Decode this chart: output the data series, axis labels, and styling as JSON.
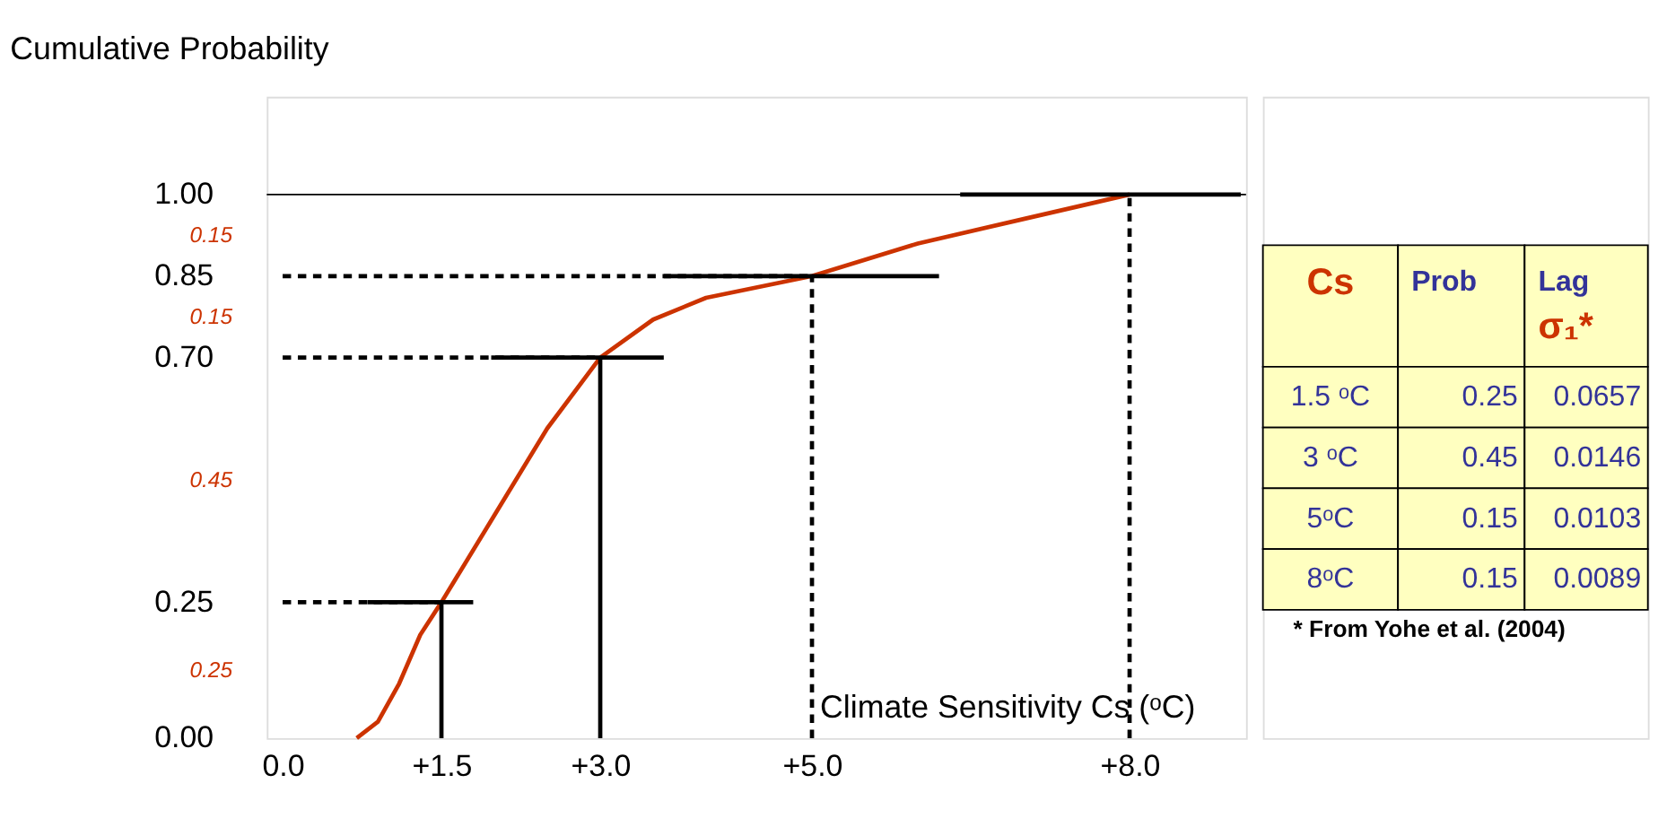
{
  "chart_data": [
    {
      "type": "line",
      "title": "Cumulative Probability",
      "xlabel": "Climate Sensitivity Cs (ᵒC)",
      "xlim": [
        -0.15,
        9.1
      ],
      "ylim": [
        0,
        1.18
      ],
      "xticks": [
        {
          "value": 0,
          "label": "0.0"
        },
        {
          "value": 1.5,
          "label": "+1.5"
        },
        {
          "value": 3,
          "label": "+3.0"
        },
        {
          "value": 5,
          "label": "+5.0"
        },
        {
          "value": 8,
          "label": "+8.0"
        }
      ],
      "yticks": [
        {
          "value": 0,
          "label": "0.00"
        },
        {
          "value": 0.25,
          "label": "0.25"
        },
        {
          "value": 0.7,
          "label": "0.70"
        },
        {
          "value": 0.85,
          "label": "0.85"
        },
        {
          "value": 1,
          "label": "1.00"
        }
      ],
      "grid": false,
      "ref_lines": [
        {
          "axis": "y",
          "value": 1,
          "color": "#000000",
          "line_style": "solid"
        }
      ],
      "annotations": [
        "0.15",
        "0.15",
        "0.45",
        "0.25"
      ],
      "series": [
        {
          "type": "line",
          "color": "#cc3300",
          "line_style": "solid",
          "x": [
            0.7,
            0.9,
            1.1,
            1.3,
            1.5,
            2.0,
            2.5,
            3.0,
            3.5,
            4.0,
            5.0,
            6.0,
            7.0,
            8.0
          ],
          "values": [
            0,
            0.03,
            0.1,
            0.19,
            0.25,
            0.41,
            0.57,
            0.7,
            0.77,
            0.81,
            0.85,
            0.91,
            0.955,
            1.0
          ]
        },
        {
          "type": "line",
          "color": "#000000",
          "line_style": "solid",
          "x": [
            0.8,
            1.8
          ],
          "values": [
            0.25,
            0.25
          ]
        },
        {
          "type": "line",
          "color": "#000000",
          "line_style": "solid",
          "x": [
            1.97,
            3.6
          ],
          "values": [
            0.7,
            0.7
          ]
        },
        {
          "type": "line",
          "color": "#000000",
          "line_style": "solid",
          "x": [
            3.6,
            6.2
          ],
          "values": [
            0.85,
            0.85
          ]
        },
        {
          "type": "line",
          "color": "#000000",
          "line_style": "solid",
          "x": [
            6.4,
            9.05
          ],
          "values": [
            1.0,
            1.0
          ]
        },
        {
          "type": "line",
          "color": "#000000",
          "line_style": "dashed",
          "x": [
            0,
            1.5
          ],
          "values": [
            0.25,
            0.25
          ]
        },
        {
          "type": "line",
          "color": "#000000",
          "line_style": "dashed",
          "x": [
            0,
            3.0
          ],
          "values": [
            0.7,
            0.7
          ]
        },
        {
          "type": "line",
          "color": "#000000",
          "line_style": "dashed",
          "x": [
            0,
            5.0
          ],
          "values": [
            0.85,
            0.85
          ]
        },
        {
          "type": "line",
          "color": "#000000",
          "line_style": "solid",
          "x": [
            1.5,
            1.5
          ],
          "values": [
            0,
            0.25
          ]
        },
        {
          "type": "line",
          "color": "#000000",
          "line_style": "solid",
          "x": [
            3.0,
            3.0
          ],
          "values": [
            0,
            0.7
          ]
        },
        {
          "type": "line",
          "color": "#000000",
          "line_style": "dashed",
          "x": [
            5.0,
            5.0
          ],
          "values": [
            0,
            0.85
          ]
        },
        {
          "type": "line",
          "color": "#000000",
          "line_style": "dashed",
          "x": [
            8.0,
            8.0
          ],
          "values": [
            0,
            1.0
          ]
        }
      ]
    },
    {
      "type": "other",
      "categories": [
        "Cs",
        "Prob",
        "Lag σ₁*"
      ],
      "cell_labels": [
        [
          "1.5 ᵒC",
          "0.25",
          "0.0657"
        ],
        [
          "3 ᵒC",
          "0.45",
          "0.0146"
        ],
        [
          "5ᵒC",
          "0.15",
          "0.0103"
        ],
        [
          "8ᵒC",
          "0.15",
          "0.0089"
        ]
      ],
      "annotations": [
        "* From Yohe et al. (2004)"
      ]
    }
  ]
}
